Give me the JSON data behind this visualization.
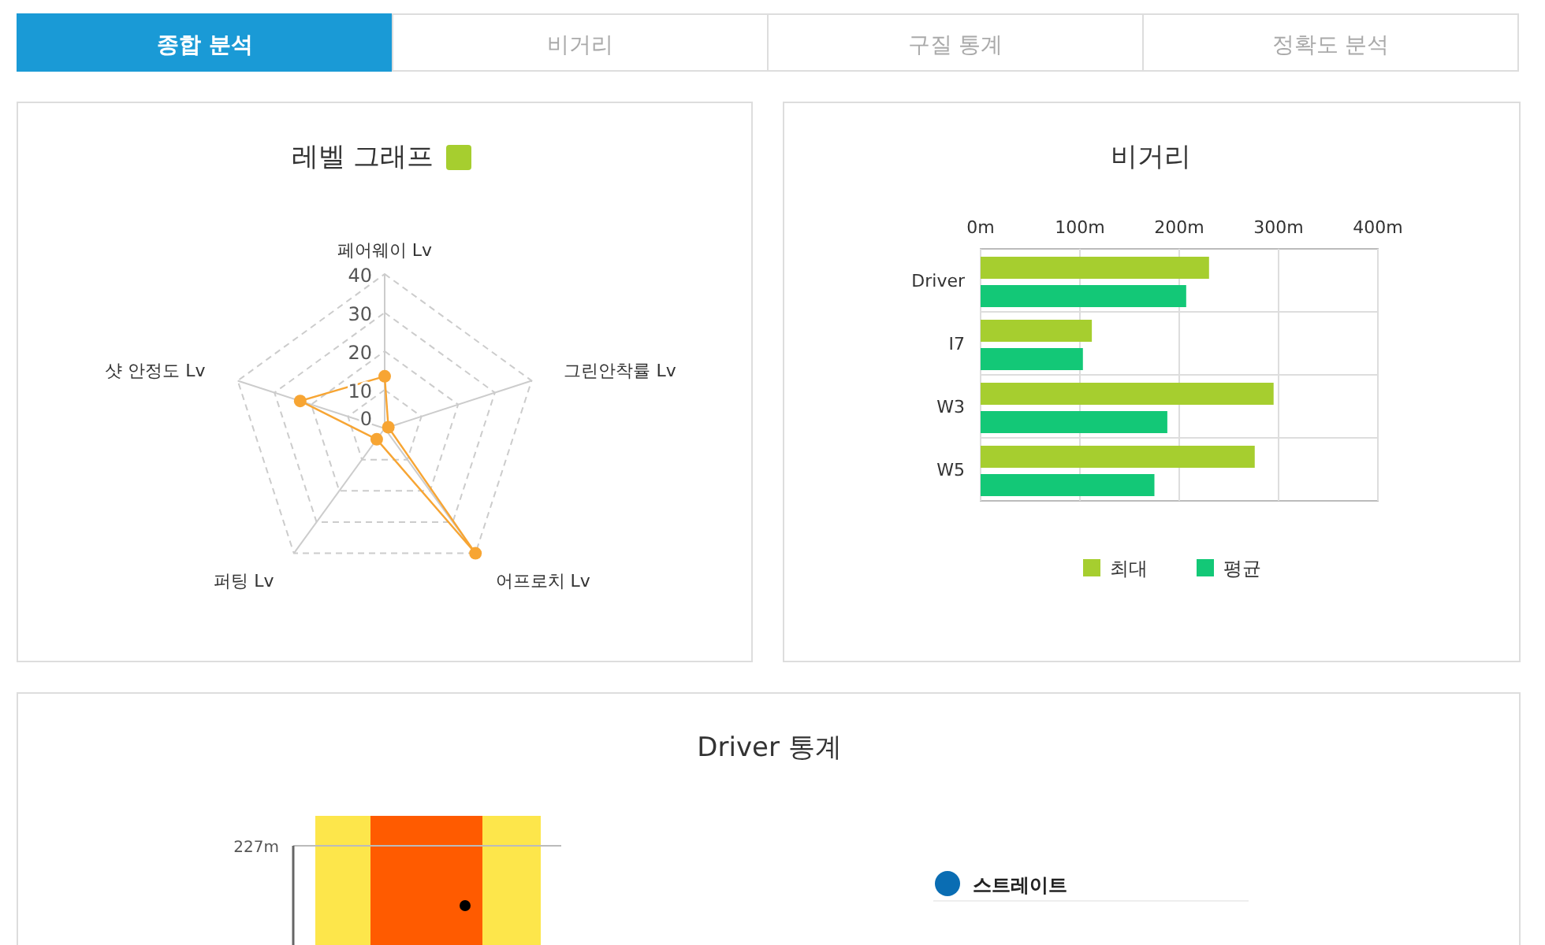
{
  "chart_data": [
    {
      "type": "other",
      "annotations": [
        "종합 분석",
        "비거리",
        "구질 통계",
        "정확도 분석"
      ]
    },
    {
      "type": "radar",
      "title": "레벨 그래프",
      "categories": [
        "페어웨이 Lv",
        "그린안착률 Lv",
        "어프로치 Lv",
        "퍼팅 Lv",
        "샷 안정도 Lv"
      ],
      "ylim": [
        0,
        40
      ],
      "yticks": [
        0,
        10,
        20,
        30,
        40
      ],
      "grid": true,
      "marker": "circle",
      "series": [
        {
          "color": "#f7a533",
          "values": [
            13.5,
            1,
            40,
            3.5,
            23
          ]
        }
      ]
    },
    {
      "type": "bar",
      "title": "비거리",
      "orientation": "horizontal",
      "categories": [
        "Driver",
        "I7",
        "W3",
        "W5"
      ],
      "xlim": [
        0,
        400
      ],
      "xticks": [
        {
          "value": 0,
          "label": "0m"
        },
        {
          "value": 100,
          "label": "100m"
        },
        {
          "value": 200,
          "label": "200m"
        },
        {
          "value": 300,
          "label": "300m"
        },
        {
          "value": 400,
          "label": "400m"
        }
      ],
      "grid": true,
      "legend": "bottom",
      "series": [
        {
          "name": "최대",
          "color": "#a6ce2f",
          "values": [
            230,
            112,
            295,
            276
          ]
        },
        {
          "name": "평균",
          "color": "#13c877",
          "values": [
            207,
            103,
            188,
            175
          ]
        }
      ]
    },
    {
      "type": "other",
      "title": "Driver 통계",
      "annotations": [
        "227m",
        "스트레이트"
      ]
    }
  ]
}
